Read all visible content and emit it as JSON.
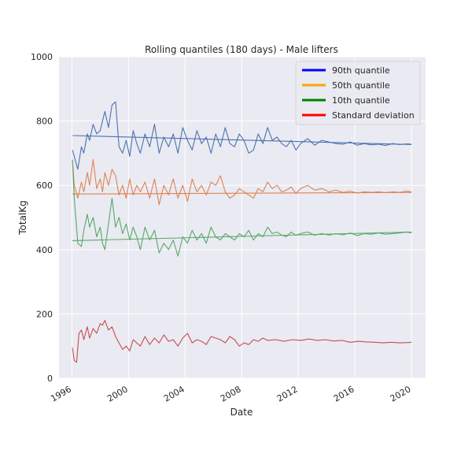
{
  "chart_data": {
    "type": "line",
    "title": "Rolling quantiles (180 days) - Male lifters",
    "xlabel": "Date",
    "ylabel": "TotalKg",
    "xlim": [
      "1995-02-01",
      "2020-12-31"
    ],
    "ylim": [
      0,
      1000
    ],
    "x_ticks": [
      "1996",
      "2000",
      "2004",
      "2008",
      "2012",
      "2016",
      "2020"
    ],
    "y_ticks": [
      0,
      200,
      400,
      600,
      800,
      1000
    ],
    "grid": true,
    "legend_position": "top-right",
    "legend": [
      {
        "label": "90th quantile",
        "color": "#0000ff"
      },
      {
        "label": "50th quantile",
        "color": "#ffa500"
      },
      {
        "label": "10th quantile",
        "color": "#008000"
      },
      {
        "label": "Standard deviation",
        "color": "#ff0000"
      }
    ],
    "series": [
      {
        "color": "#4c72b0",
        "x": [
          "1996-01-15",
          "1996-03-01",
          "1996-06-01",
          "1996-09-01",
          "1996-11-01",
          "1997-02-01",
          "1997-04-01",
          "1997-07-01",
          "1997-10-01",
          "1998-01-01",
          "1998-03-01",
          "1998-05-01",
          "1998-08-01",
          "1998-11-01",
          "1999-02-01",
          "1999-05-01",
          "1999-08-01",
          "1999-11-01",
          "2000-02-01",
          "2000-05-01",
          "2000-08-01",
          "2000-11-01",
          "2001-03-01",
          "2001-07-01",
          "2001-11-01",
          "2002-03-01",
          "2002-07-01",
          "2002-11-01",
          "2003-03-01",
          "2003-07-01",
          "2003-11-01",
          "2004-03-01",
          "2004-07-01",
          "2004-11-01",
          "2005-03-01",
          "2005-07-01",
          "2005-11-01",
          "2006-03-01",
          "2006-07-01",
          "2006-11-01",
          "2007-03-01",
          "2007-07-01",
          "2007-11-01",
          "2008-03-01",
          "2008-07-01",
          "2008-11-01",
          "2009-03-01",
          "2009-07-01",
          "2009-11-01",
          "2010-03-01",
          "2010-07-01",
          "2010-11-01",
          "2011-03-01",
          "2011-07-01",
          "2011-11-01",
          "2012-03-01",
          "2012-09-01",
          "2013-03-01",
          "2013-09-01",
          "2014-03-01",
          "2014-09-01",
          "2015-03-01",
          "2015-09-01",
          "2016-03-01",
          "2016-09-01",
          "2017-03-01",
          "2017-09-01",
          "2018-03-01",
          "2018-09-01",
          "2019-03-01",
          "2019-09-01",
          "2019-12-31"
        ],
        "y": [
          710,
          690,
          650,
          720,
          700,
          760,
          740,
          790,
          760,
          770,
          800,
          830,
          780,
          850,
          860,
          720,
          700,
          740,
          690,
          770,
          730,
          700,
          760,
          720,
          790,
          700,
          750,
          720,
          760,
          700,
          780,
          740,
          710,
          770,
          730,
          750,
          700,
          760,
          720,
          780,
          730,
          720,
          760,
          740,
          700,
          710,
          760,
          730,
          780,
          740,
          750,
          730,
          720,
          740,
          710,
          730,
          745,
          725,
          740,
          735,
          730,
          728,
          735,
          725,
          730,
          726,
          728,
          724,
          730,
          727,
          729,
          728
        ]
      },
      {
        "color": "#4c72b0",
        "x": [
          "1996-01-15",
          "2019-12-31"
        ],
        "y": [
          755,
          727
        ]
      },
      {
        "color": "#dd8452",
        "x": [
          "1996-01-15",
          "1996-03-01",
          "1996-06-01",
          "1996-09-01",
          "1996-11-01",
          "1997-02-01",
          "1997-04-01",
          "1997-07-01",
          "1997-10-01",
          "1998-01-01",
          "1998-03-01",
          "1998-05-01",
          "1998-08-01",
          "1998-11-01",
          "1999-02-01",
          "1999-05-01",
          "1999-08-01",
          "1999-11-01",
          "2000-02-01",
          "2000-05-01",
          "2000-08-01",
          "2000-11-01",
          "2001-03-01",
          "2001-07-01",
          "2001-11-01",
          "2002-03-01",
          "2002-07-01",
          "2002-11-01",
          "2003-03-01",
          "2003-07-01",
          "2003-11-01",
          "2004-03-01",
          "2004-07-01",
          "2004-11-01",
          "2005-03-01",
          "2005-07-01",
          "2005-11-01",
          "2006-03-01",
          "2006-07-01",
          "2006-11-01",
          "2007-03-01",
          "2007-07-01",
          "2007-11-01",
          "2008-03-01",
          "2008-07-01",
          "2008-11-01",
          "2009-03-01",
          "2009-07-01",
          "2009-11-01",
          "2010-03-01",
          "2010-07-01",
          "2010-11-01",
          "2011-03-01",
          "2011-07-01",
          "2011-11-01",
          "2012-03-01",
          "2012-09-01",
          "2013-03-01",
          "2013-09-01",
          "2014-03-01",
          "2014-09-01",
          "2015-03-01",
          "2015-09-01",
          "2016-03-01",
          "2016-09-01",
          "2017-03-01",
          "2017-09-01",
          "2018-03-01",
          "2018-09-01",
          "2019-03-01",
          "2019-09-01",
          "2019-12-31"
        ],
        "y": [
          680,
          600,
          560,
          610,
          580,
          640,
          600,
          680,
          590,
          620,
          580,
          640,
          600,
          650,
          630,
          570,
          600,
          560,
          620,
          570,
          600,
          580,
          610,
          560,
          620,
          540,
          600,
          570,
          620,
          560,
          600,
          550,
          620,
          580,
          600,
          570,
          610,
          600,
          630,
          580,
          560,
          570,
          590,
          580,
          570,
          560,
          590,
          580,
          610,
          590,
          600,
          580,
          585,
          595,
          575,
          590,
          600,
          585,
          590,
          580,
          585,
          578,
          582,
          576,
          580,
          578,
          580,
          577,
          580,
          578,
          582,
          580
        ]
      },
      {
        "color": "#dd8452",
        "x": [
          "1996-01-15",
          "2019-12-31"
        ],
        "y": [
          573,
          578
        ]
      },
      {
        "color": "#55a868",
        "x": [
          "1996-01-15",
          "1996-03-01",
          "1996-06-01",
          "1996-09-01",
          "1996-11-01",
          "1997-02-01",
          "1997-04-01",
          "1997-07-01",
          "1997-10-01",
          "1998-01-01",
          "1998-03-01",
          "1998-05-01",
          "1998-08-01",
          "1998-11-01",
          "1999-02-01",
          "1999-05-01",
          "1999-08-01",
          "1999-11-01",
          "2000-02-01",
          "2000-05-01",
          "2000-08-01",
          "2000-11-01",
          "2001-03-01",
          "2001-07-01",
          "2001-11-01",
          "2002-03-01",
          "2002-07-01",
          "2002-11-01",
          "2003-03-01",
          "2003-07-01",
          "2003-11-01",
          "2004-03-01",
          "2004-07-01",
          "2004-11-01",
          "2005-03-01",
          "2005-07-01",
          "2005-11-01",
          "2006-03-01",
          "2006-07-01",
          "2006-11-01",
          "2007-03-01",
          "2007-07-01",
          "2007-11-01",
          "2008-03-01",
          "2008-07-01",
          "2008-11-01",
          "2009-03-01",
          "2009-07-01",
          "2009-11-01",
          "2010-03-01",
          "2010-07-01",
          "2010-11-01",
          "2011-03-01",
          "2011-07-01",
          "2011-11-01",
          "2012-03-01",
          "2012-09-01",
          "2013-03-01",
          "2013-09-01",
          "2014-03-01",
          "2014-09-01",
          "2015-03-01",
          "2015-09-01",
          "2016-03-01",
          "2016-09-01",
          "2017-03-01",
          "2017-09-01",
          "2018-03-01",
          "2018-09-01",
          "2019-03-01",
          "2019-09-01",
          "2019-12-31"
        ],
        "y": [
          680,
          560,
          420,
          410,
          460,
          510,
          470,
          500,
          440,
          470,
          420,
          400,
          480,
          560,
          470,
          500,
          450,
          480,
          430,
          470,
          440,
          400,
          470,
          430,
          460,
          390,
          420,
          400,
          430,
          380,
          440,
          420,
          460,
          430,
          450,
          420,
          470,
          440,
          430,
          450,
          440,
          430,
          450,
          440,
          460,
          430,
          450,
          440,
          470,
          450,
          455,
          445,
          440,
          455,
          445,
          450,
          455,
          445,
          450,
          445,
          450,
          446,
          452,
          444,
          450,
          448,
          452,
          448,
          450,
          452,
          455,
          452
        ]
      },
      {
        "color": "#55a868",
        "x": [
          "1996-01-15",
          "2019-12-31"
        ],
        "y": [
          428,
          455
        ]
      },
      {
        "color": "#c44e52",
        "x": [
          "1996-01-15",
          "1996-03-01",
          "1996-05-01",
          "1996-07-01",
          "1996-09-01",
          "1996-11-01",
          "1997-02-01",
          "1997-04-01",
          "1997-07-01",
          "1997-10-01",
          "1998-01-01",
          "1998-03-01",
          "1998-05-01",
          "1998-08-01",
          "1998-11-01",
          "1999-02-01",
          "1999-05-01",
          "1999-08-01",
          "1999-11-01",
          "2000-02-01",
          "2000-05-01",
          "2000-08-01",
          "2000-11-01",
          "2001-03-01",
          "2001-07-01",
          "2001-11-01",
          "2002-03-01",
          "2002-07-01",
          "2002-11-01",
          "2003-03-01",
          "2003-07-01",
          "2003-11-01",
          "2004-03-01",
          "2004-07-01",
          "2004-11-01",
          "2005-03-01",
          "2005-07-01",
          "2005-11-01",
          "2006-03-01",
          "2006-07-01",
          "2006-11-01",
          "2007-03-01",
          "2007-07-01",
          "2007-11-01",
          "2008-03-01",
          "2008-07-01",
          "2008-11-01",
          "2009-03-01",
          "2009-07-01",
          "2009-11-01",
          "2010-06-01",
          "2011-01-01",
          "2011-08-01",
          "2012-03-01",
          "2012-10-01",
          "2013-05-01",
          "2013-12-01",
          "2014-07-01",
          "2015-02-01",
          "2015-09-01",
          "2016-04-01",
          "2016-11-01",
          "2017-06-01",
          "2018-01-01",
          "2018-08-01",
          "2019-03-01",
          "2019-10-01",
          "2019-12-31"
        ],
        "y": [
          95,
          55,
          50,
          140,
          150,
          120,
          160,
          125,
          155,
          140,
          170,
          165,
          180,
          150,
          160,
          130,
          110,
          90,
          100,
          85,
          120,
          110,
          100,
          130,
          105,
          125,
          110,
          135,
          115,
          120,
          100,
          125,
          140,
          110,
          120,
          115,
          105,
          130,
          125,
          120,
          110,
          130,
          120,
          100,
          110,
          105,
          120,
          115,
          125,
          118,
          120,
          115,
          120,
          118,
          122,
          118,
          120,
          116,
          118,
          112,
          115,
          113,
          112,
          110,
          112,
          110,
          111,
          112
        ]
      }
    ]
  }
}
